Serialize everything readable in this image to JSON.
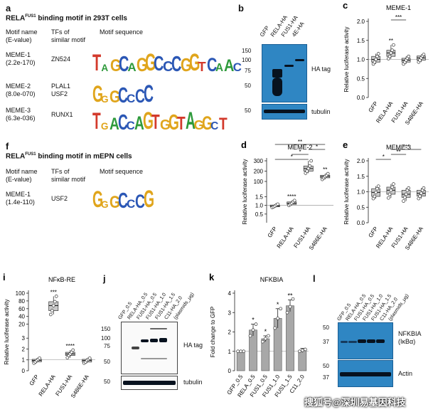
{
  "panel_a": {
    "label": "a",
    "title": "RELA",
    "title_sup": "FUS1",
    "title_rest": " binding motif in 293T cells",
    "col_motif": "Motif name",
    "col_motif2": "(E-value)",
    "col_tfs": "TFs of",
    "col_tfs2": "similar motif",
    "col_seq": "Motif sequence",
    "rows": [
      {
        "name": "MEME-1",
        "evalue": "(2.2e-170)",
        "tfs": "ZN524",
        "tfs2": "",
        "logo": "TAGCAGGCCCGGTCAAC"
      },
      {
        "name": "MEME-2",
        "evalue": "(8.0e-070)",
        "tfs": "PLAL1",
        "tfs2": "USF2",
        "logo": "GGGCCCC"
      },
      {
        "name": "MEME-3",
        "evalue": "(6.3e-036)",
        "tfs": "RUNX1",
        "tfs2": "",
        "logo": "TGACCAGTGGTAGGCT"
      }
    ]
  },
  "panel_f": {
    "label": "f",
    "title": "RELA",
    "title_sup": "FUS1",
    "title_rest": " binding motif in mEPN cells",
    "rows": [
      {
        "name": "MEME-1",
        "evalue": "(1.4e-110)",
        "tfs": "USF2",
        "logo": "GGGCCCG"
      }
    ]
  },
  "panel_b": {
    "label": "b",
    "lanes": [
      "GFP",
      "RELA-HA",
      "FUS1-HA",
      "4E-HA"
    ],
    "markers_top": [
      "150",
      "100",
      "75",
      "50"
    ],
    "markers_bottom": [
      "50"
    ],
    "blot1_label": "HA tag",
    "blot2_label": "tubulin"
  },
  "panel_j": {
    "label": "j",
    "lanes": [
      "GFP_0.5",
      "RELA-HA_0.5",
      "FUS1-HA_0.5",
      "FUS1-HA_1.0",
      "FUS1-HA_1.5",
      "C11-HA_2.0",
      "(plasmids_μg)"
    ],
    "markers_top": [
      "150",
      "100",
      "75",
      "50"
    ],
    "markers_bottom": [
      "50"
    ],
    "blot1_label": "HA tag",
    "blot2_label": "tubulin"
  },
  "panel_l": {
    "label": "l",
    "lanes": [
      "GFP_0.5",
      "RELA-HA_0.5",
      "FUS1-HA_0.5",
      "FUS1-HA_1.0",
      "FUS1-HA_1.5",
      "C11-HA_2.0",
      "(plasmids_μg)"
    ],
    "markers_top": [
      "50",
      "37"
    ],
    "markers_bottom": [
      "50",
      "37"
    ],
    "blot1_label": "NFKBIA",
    "blot1_label2": "(IκBα)",
    "blot2_label": "Actin"
  },
  "colors": {
    "blot": "#2f86c3",
    "box_fill": "#c8c8c8",
    "bar_fill": "#a8a8a8",
    "band": "#07121f"
  },
  "watermark": "搜狐号@深圳易基因科技",
  "chart_data": [
    {
      "id": "c",
      "type": "box",
      "label": "c",
      "title": "MEME-1",
      "ylabel": "Relative luciferase activity",
      "categories": [
        "GFP",
        "RELA-HA",
        "FUS1-HA",
        "S486E-HA"
      ],
      "yticks": [
        0,
        0.5,
        1.0,
        1.5,
        2.0
      ],
      "ylim": [
        0,
        2.0
      ],
      "reference_line": 1.0,
      "boxes": [
        {
          "min": 0.88,
          "q1": 0.93,
          "median": 1.0,
          "q3": 1.08,
          "max": 1.15
        },
        {
          "min": 1.02,
          "q1": 1.08,
          "median": 1.17,
          "q3": 1.24,
          "max": 1.38
        },
        {
          "min": 0.88,
          "q1": 0.93,
          "median": 0.98,
          "q3": 1.03,
          "max": 1.08
        },
        {
          "min": 0.93,
          "q1": 0.98,
          "median": 1.04,
          "q3": 1.09,
          "max": 1.13
        }
      ],
      "points": [
        [
          0.9,
          1.0,
          1.05,
          1.12,
          0.95
        ],
        [
          1.05,
          1.15,
          1.22,
          1.3,
          1.1
        ],
        [
          0.9,
          0.95,
          1.0,
          1.05
        ],
        [
          0.95,
          1.0,
          1.06,
          1.1
        ]
      ],
      "annotations": [
        {
          "text": "**",
          "category": 1
        },
        {
          "text": "***",
          "bracket": [
            1,
            2
          ]
        }
      ]
    },
    {
      "id": "d",
      "type": "box",
      "label": "d",
      "title": "MEME-2",
      "ylabel": "Relative luciferase activity",
      "categories": [
        "GFP",
        "RELA-HA",
        "FUS1-HA",
        "S486E-HA"
      ],
      "yticks": [
        0.5,
        1.0,
        1.5,
        100,
        200,
        300
      ],
      "broken_axis": true,
      "reference_line": 1.0,
      "boxes": [
        {
          "min": 0.88,
          "q1": 0.92,
          "median": 0.96,
          "q3": 1.02,
          "max": 1.07
        },
        {
          "min": 1.0,
          "q1": 1.06,
          "median": 1.12,
          "q3": 1.2,
          "max": 1.28
        },
        {
          "min": 180,
          "q1": 200,
          "median": 225,
          "q3": 250,
          "max": 300
        },
        {
          "min": 120,
          "q1": 135,
          "median": 148,
          "q3": 160,
          "max": 175
        }
      ],
      "annotations": [
        {
          "text": "****",
          "category": 1
        },
        {
          "text": "**",
          "category": 3
        },
        {
          "text": "*",
          "bracket": [
            0,
            2
          ]
        },
        {
          "text": "*",
          "bracket": [
            1,
            2
          ]
        },
        {
          "text": "*",
          "bracket": [
            2,
            3
          ]
        },
        {
          "text": "**",
          "bracket": [
            0,
            3
          ]
        }
      ]
    },
    {
      "id": "e",
      "type": "box",
      "label": "e",
      "title": "MEME-3",
      "ylabel": "Relative luciferase activity",
      "categories": [
        "GFP",
        "RELA-HA",
        "FUS1-HA",
        "S486E-HA"
      ],
      "yticks": [
        0,
        0.5,
        1.0,
        1.5,
        2.0
      ],
      "ylim": [
        0,
        2.0
      ],
      "reference_line": 1.0,
      "boxes": [
        {
          "min": 0.78,
          "q1": 0.85,
          "median": 0.98,
          "q3": 1.1,
          "max": 1.18
        },
        {
          "min": 0.8,
          "q1": 0.92,
          "median": 1.05,
          "q3": 1.15,
          "max": 1.25
        },
        {
          "min": 0.7,
          "q1": 0.82,
          "median": 0.92,
          "q3": 1.05,
          "max": 1.12
        },
        {
          "min": 0.78,
          "q1": 0.86,
          "median": 0.95,
          "q3": 1.05,
          "max": 1.12
        }
      ],
      "annotations": [
        {
          "text": "*",
          "bracket": [
            0,
            1
          ]
        },
        {
          "text": "**",
          "bracket": [
            1,
            2
          ]
        },
        {
          "text": "***",
          "bracket": [
            1,
            3
          ]
        }
      ]
    },
    {
      "id": "i",
      "type": "box",
      "label": "i",
      "title": "NFκB-RE",
      "ylabel": "Relative luciferase activity",
      "categories": [
        "GFP",
        "RELA-HA",
        "FUS1-HA",
        "S486E-HA"
      ],
      "yticks": [
        0,
        1,
        2,
        3,
        20,
        40,
        60,
        80,
        100
      ],
      "broken_axis": true,
      "reference_line": 1.0,
      "boxes": [
        {
          "min": 0.7,
          "q1": 0.82,
          "median": 0.95,
          "q3": 1.05,
          "max": 1.15
        },
        {
          "min": 45,
          "q1": 55,
          "median": 68,
          "q3": 78,
          "max": 92
        },
        {
          "min": 1.2,
          "q1": 1.4,
          "median": 1.55,
          "q3": 1.7,
          "max": 1.9
        },
        {
          "min": 0.7,
          "q1": 0.8,
          "median": 0.95,
          "q3": 1.05,
          "max": 1.15
        }
      ],
      "annotations": [
        {
          "text": "***",
          "category": 1
        },
        {
          "text": "****",
          "category": 2
        }
      ]
    },
    {
      "id": "k",
      "type": "bar",
      "label": "k",
      "title": "NFKBIA",
      "ylabel": "Fold change to GFP",
      "categories": [
        "GFP_0.5",
        "RELA_0.5",
        "FUS1_0.5",
        "FUS1_1.0",
        "FUS1_1.5",
        "C11_2.0"
      ],
      "yticks": [
        0,
        1,
        2,
        3,
        4
      ],
      "ylim": [
        0,
        4
      ],
      "values": [
        1.0,
        2.1,
        1.65,
        2.7,
        3.35,
        1.05
      ],
      "errors": [
        0.02,
        0.3,
        0.15,
        0.5,
        0.3,
        0.1
      ],
      "points": [
        [
          1.0,
          1.0,
          1.0
        ],
        [
          1.8,
          2.1,
          2.4
        ],
        [
          1.5,
          1.65,
          1.8
        ],
        [
          2.2,
          2.7,
          3.2
        ],
        [
          3.0,
          3.3,
          3.7
        ],
        [
          1.0,
          1.05,
          1.1
        ]
      ],
      "reference_line": 1.0,
      "annotations": [
        "",
        "*",
        "*",
        "*",
        "**",
        ""
      ]
    }
  ]
}
